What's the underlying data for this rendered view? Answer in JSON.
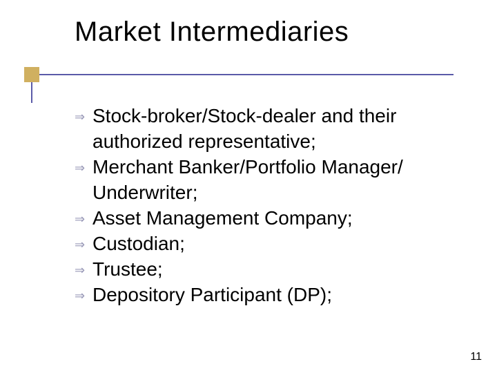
{
  "slide": {
    "title": "Market Intermediaries",
    "title_fontsize": 40,
    "title_color": "#000000",
    "accent": {
      "box_color": "#d0b060",
      "line_color": "#5a5aa8",
      "line_width": 2
    },
    "bullet_glyph": "⇒",
    "bullet_color": "#9a9ab8",
    "bullet_fontsize": 18,
    "body_fontsize": 28,
    "body_color": "#000000",
    "items": [
      {
        "text": "Stock-broker/Stock-dealer and their authorized representative;"
      },
      {
        "text": "Merchant Banker/Portfolio Manager/ Underwriter;"
      },
      {
        "text": "Asset Management Company;"
      },
      {
        "text": "Custodian;"
      },
      {
        "text": "Trustee;"
      },
      {
        "text": "Depository Participant (DP);"
      }
    ],
    "page_number": "11",
    "page_number_fontsize": 16,
    "page_number_color": "#000000",
    "background_color": "#ffffff"
  }
}
